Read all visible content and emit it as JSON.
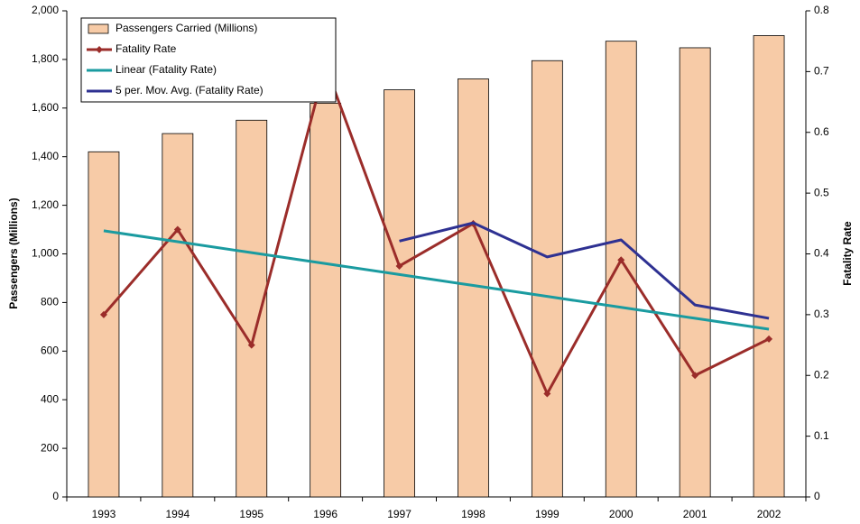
{
  "chart_data": {
    "type": "bar_line",
    "categories": [
      "1993",
      "1994",
      "1995",
      "1996",
      "1997",
      "1998",
      "1999",
      "2000",
      "2001",
      "2002"
    ],
    "ylabel": "Passengers (Millions)",
    "y2label": "Fatality Rate",
    "ylim": [
      0,
      2000
    ],
    "yticks": [
      0,
      200,
      400,
      600,
      800,
      {
        "value": 1000,
        "label": "1,000"
      },
      {
        "value": 1200,
        "label": "1,200"
      },
      {
        "value": 1400,
        "label": "1,400"
      },
      {
        "value": 1600,
        "label": "1,600"
      },
      {
        "value": 1800,
        "label": "1,800"
      },
      {
        "value": 2000,
        "label": "2,000"
      }
    ],
    "y2lim": [
      0,
      0.8
    ],
    "y2ticks": [
      0,
      0.1,
      0.2,
      0.3,
      0.4,
      0.5,
      0.6,
      0.7,
      0.8
    ],
    "grid": false,
    "legend": "upper left",
    "series": [
      {
        "name": "Passengers Carried (Millions)",
        "type": "bar",
        "color": "#f7cba7",
        "values": [
          1420,
          1495,
          1550,
          1620,
          1675,
          1720,
          1795,
          1875,
          1848,
          1898
        ]
      },
      {
        "name": "Fatality Rate",
        "type": "line",
        "axis": "y2",
        "color": "#9b2d2a",
        "marker": "diamond",
        "values": [
          0.3,
          0.44,
          0.25,
          0.71,
          0.38,
          0.45,
          0.17,
          0.39,
          0.2,
          0.26
        ]
      },
      {
        "name": "Linear (Fatality Rate)",
        "type": "line",
        "axis": "y2",
        "color": "#1a9ba0",
        "values": [
          0.438,
          0.42,
          0.402,
          0.384,
          0.366,
          0.348,
          0.33,
          0.312,
          0.294,
          0.276
        ]
      },
      {
        "name": "5 per. Mov. Avg. (Fatality Rate)",
        "type": "line",
        "axis": "y2",
        "color": "#2e3192",
        "values": [
          null,
          null,
          null,
          null,
          0.421,
          0.451,
          0.395,
          0.423,
          0.316,
          0.294
        ]
      }
    ]
  }
}
